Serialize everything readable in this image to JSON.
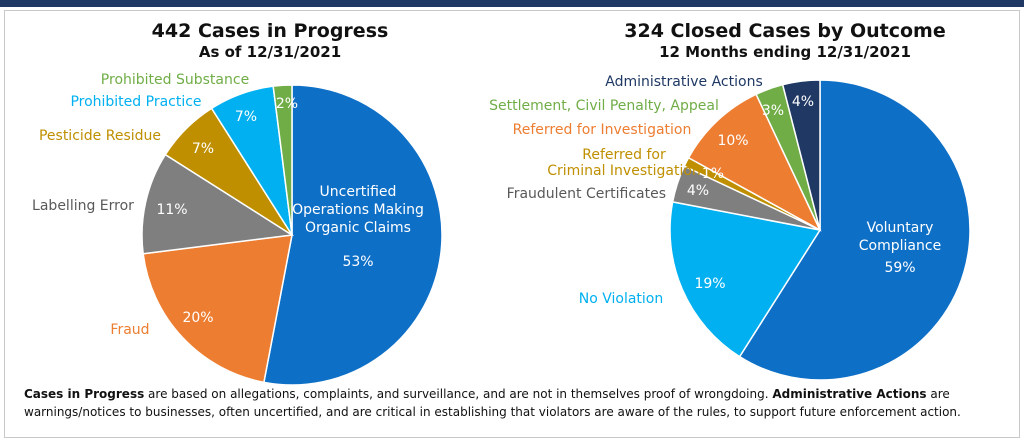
{
  "chart_data": [
    {
      "type": "pie",
      "title": "442 Cases in Progress",
      "subtitle": "As of 12/31/2021",
      "slices": [
        {
          "label": "Uncertified Operations Making Organic Claims",
          "value": 53,
          "value_label": "53%",
          "color": "#0e6fc6"
        },
        {
          "label": "Fraud",
          "value": 20,
          "value_label": "20%",
          "color": "#ed7d31"
        },
        {
          "label": "Labelling Error",
          "value": 11,
          "value_label": "11%",
          "color": "#7f7f7f"
        },
        {
          "label": "Pesticide Residue",
          "value": 7,
          "value_label": "7%",
          "color": "#bf8f00"
        },
        {
          "label": "Prohibited Practice",
          "value": 7,
          "value_label": "7%",
          "color": "#00b0f0"
        },
        {
          "label": "Prohibited Substance",
          "value": 2,
          "value_label": "2%",
          "color": "#70ad47"
        }
      ]
    },
    {
      "type": "pie",
      "title": "324 Closed Cases by Outcome",
      "subtitle": "12 Months ending 12/31/2021",
      "slices": [
        {
          "label": "Voluntary Compliance",
          "value": 59,
          "value_label": "59%",
          "color": "#0e6fc6"
        },
        {
          "label": "No Violation",
          "value": 19,
          "value_label": "19%",
          "color": "#00b0f0"
        },
        {
          "label": "Fraudulent Certificates",
          "value": 4,
          "value_label": "4%",
          "color": "#7f7f7f"
        },
        {
          "label": "Referred for Criminal Investigation",
          "value": 1,
          "value_label": "1%",
          "color": "#bf8f00"
        },
        {
          "label": "Referred for Investigation",
          "value": 10,
          "value_label": "10%",
          "color": "#ed7d31"
        },
        {
          "label": "Settlement, Civil Penalty, Appeal",
          "value": 3,
          "value_label": "3%",
          "color": "#70ad47"
        },
        {
          "label": "Administrative Actions",
          "value": 4,
          "value_label": "4%",
          "color": "#1f3864"
        }
      ]
    }
  ],
  "footnote": {
    "term1": "Cases in Progress",
    "text1": " are based on allegations, complaints, and surveillance, and are not in themselves proof of wrongdoing. ",
    "term2": "Administrative Actions",
    "text2": " are warnings/notices to businesses, often uncertified, and are critical in establishing that violators are aware of the rules, to support future enforcement action."
  }
}
